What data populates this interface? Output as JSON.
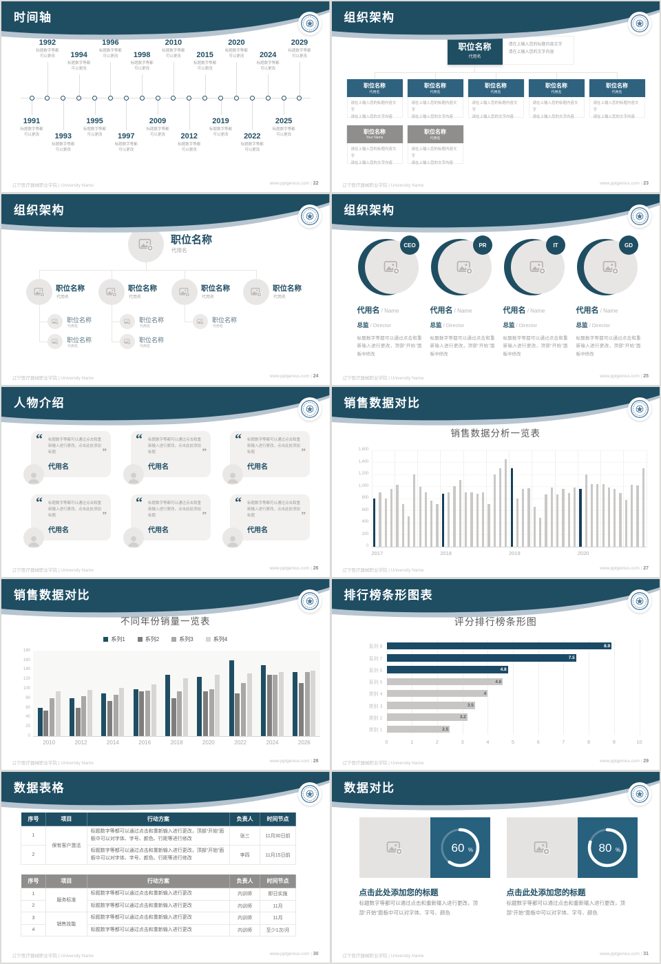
{
  "footer": {
    "university": "辽宁医疗器械职业学院 | University Name",
    "site": "www.pptgenius.com",
    "sep": "|"
  },
  "placeholder": {
    "note_line1": "请在上输入您的标题内容文字",
    "note_line2": "请在上输入您的文字内容"
  },
  "colors": {
    "header_band": "#1f4e63",
    "band_under": "#b7c5d0",
    "accent_blue": "#1f4e63",
    "chart_highlight": "#16405a",
    "chart_gray": "#c9c8c6",
    "series": [
      "#1f4e63",
      "#7f7e7d",
      "#a9a7a5",
      "#d8d6d4"
    ],
    "ranking_dark": "#1b4a66",
    "ranking_gray": "#c7c6c4",
    "table_header_blue": "#1f4e63",
    "table_header_gray": "#8f8e8d",
    "panel_blue": "#27617e",
    "placeholder_gray": "#e5e3e1",
    "icon_gray": "#b7b4b1"
  },
  "slides": {
    "timeline": {
      "title": "时间轴",
      "page": "22",
      "desc": "标题数字等都\n可以更改",
      "events": [
        {
          "year": "1991",
          "pos": "bottom-shallow"
        },
        {
          "year": "1992",
          "pos": "top-high"
        },
        {
          "year": "1993",
          "pos": "bottom-deep"
        },
        {
          "year": "1994",
          "pos": "top-low"
        },
        {
          "year": "1995",
          "pos": "bottom-shallow"
        },
        {
          "year": "1996",
          "pos": "top-high"
        },
        {
          "year": "1997",
          "pos": "bottom-deep"
        },
        {
          "year": "1998",
          "pos": "top-low"
        },
        {
          "year": "2009",
          "pos": "bottom-shallow"
        },
        {
          "year": "2010",
          "pos": "top-high"
        },
        {
          "year": "2012",
          "pos": "bottom-deep"
        },
        {
          "year": "2015",
          "pos": "top-low"
        },
        {
          "year": "2019",
          "pos": "bottom-shallow"
        },
        {
          "year": "2020",
          "pos": "top-high"
        },
        {
          "year": "2022",
          "pos": "bottom-deep"
        },
        {
          "year": "2024",
          "pos": "top-low"
        },
        {
          "year": "2025",
          "pos": "bottom-shallow"
        },
        {
          "year": "2029",
          "pos": "top-high"
        }
      ]
    },
    "org_boxes": {
      "title": "组织架构",
      "page": "23",
      "root": {
        "title": "职位名称",
        "sub": "代用名"
      },
      "children": [
        {
          "title": "职位名称",
          "sub": "代用名"
        },
        {
          "title": "职位名称",
          "sub": "代用名"
        },
        {
          "title": "职位名称",
          "sub": "代用名"
        },
        {
          "title": "职位名称",
          "sub": "代用名"
        },
        {
          "title": "职位名称",
          "sub": "代用名"
        }
      ],
      "extra": [
        {
          "title": "职位名称",
          "sub": "Your Name"
        },
        {
          "title": "职位名称",
          "sub": "代用名"
        }
      ]
    },
    "org_tree": {
      "title": "组织架构",
      "page": "24",
      "root": {
        "title": "职位名称",
        "sub": "代用名"
      },
      "branches": [
        {
          "title": "职位名称",
          "sub": "代用名",
          "children": [
            {
              "title": "职位名称",
              "sub": "代用名"
            },
            {
              "title": "职位名称",
              "sub": "代用名"
            }
          ]
        },
        {
          "title": "职位名称",
          "sub": "代用名",
          "children": [
            {
              "title": "职位名称",
              "sub": "代用名"
            },
            {
              "title": "职位名称",
              "sub": "代用名"
            }
          ]
        },
        {
          "title": "职位名称",
          "sub": "代用名",
          "children": [
            {
              "title": "职位名称",
              "sub": "代用名"
            }
          ]
        },
        {
          "title": "职位名称",
          "sub": "代用名",
          "children": []
        }
      ]
    },
    "org_people": {
      "title": "组织架构",
      "page": "25",
      "desc": "标题数字等都可以通过点击和重新输入进行更改，顶部“开始”面板中修改",
      "members": [
        {
          "badge": "CEO",
          "name": "代用名",
          "name_en": "Name",
          "role": "总监",
          "role_en": "Director"
        },
        {
          "badge": "PR",
          "name": "代用名",
          "name_en": "Name",
          "role": "总监",
          "role_en": "Director"
        },
        {
          "badge": "IT",
          "name": "代用名",
          "name_en": "Name",
          "role": "总监",
          "role_en": "Director"
        },
        {
          "badge": "GD",
          "name": "代用名",
          "name_en": "Name",
          "role": "总监",
          "role_en": "Director"
        }
      ]
    },
    "people_intro": {
      "title": "人物介绍",
      "page": "26",
      "quote_open": "“",
      "quote_close": "”",
      "cards": [
        {
          "quote": "标题数字等都可以通过点击和重新输入进行更改，点击此处添加标题",
          "name": "代用名"
        },
        {
          "quote": "标题数字等都可以通过点击和重新输入进行更改，点击此处添加标题",
          "name": "代用名"
        },
        {
          "quote": "标题数字等都可以通过点击和重新输入进行更改，点击此处添加标题",
          "name": "代用名"
        },
        {
          "quote": "标题数字等都可以通过点击和重新输入进行更改，点击此处添加标题",
          "name": "代用名"
        },
        {
          "quote": "标题数字等都可以通过点击和重新输入进行更改，点击此处添加标题",
          "name": "代用名"
        },
        {
          "quote": "标题数字等都可以通过点击和重新输入进行更改，点击此处添加标题",
          "name": "代用名"
        }
      ]
    },
    "sales1": {
      "title": "销售数据对比",
      "page": "27"
    },
    "sales2": {
      "title": "销售数据对比",
      "page": "28"
    },
    "ranking": {
      "title": "排行榜条形图表",
      "page": "29"
    },
    "tables": {
      "title": "数据表格",
      "page": "30",
      "headers": [
        "序号",
        "项目",
        "行动方案",
        "负责人",
        "时间节点"
      ],
      "table1": {
        "rows": [
          {
            "no": "1",
            "item": "保有客户激活",
            "item_span": 2,
            "action": "标题数字等都可以通过点击和重新输入进行更改，顶部“开始”面板中可以对字体、字号、颜色、行距等进行修改",
            "owner": "张三",
            "time": "11月30日前"
          },
          {
            "no": "2",
            "action": "标题数字等都可以通过点击和重新输入进行更改，顶部“开始”面板中可以对字体、字号、颜色、行距等进行修改",
            "owner": "李四",
            "time": "11月15日前"
          }
        ]
      },
      "table2": {
        "rows": [
          {
            "no": "1",
            "item": "服务标准",
            "item_span": 2,
            "action": "标题数字等都可以通过点击和重新输入进行更改",
            "owner": "内训师",
            "time": "即日实施"
          },
          {
            "no": "2",
            "action": "标题数字等都可以通过点击和重新输入进行更改",
            "owner": "内训师",
            "time": "11月"
          },
          {
            "no": "3",
            "item": "销售技能",
            "item_span": 2,
            "action": "标题数字等都可以通过点击和重新输入进行更改",
            "owner": "内训师",
            "time": "11月"
          },
          {
            "no": "4",
            "action": "标题数字等都可以通过点击和重新输入进行更改",
            "owner": "内训师",
            "time": "至少1次/月"
          }
        ]
      }
    },
    "compare": {
      "title": "数据对比",
      "page": "31",
      "cards": [
        {
          "percent": 60,
          "unit": "%",
          "heading": "点击此处添加您的标题",
          "body": "标题数字等都可以通过点击和重新输入进行更改，顶部“开始”面板中可以对字体、字号、颜色"
        },
        {
          "percent": 80,
          "unit": "%",
          "heading": "点击此处添加您的标题",
          "body": "标题数字等都可以通过点击和重新输入进行更改，顶部“开始”面板中可以对字体、字号、颜色"
        }
      ]
    }
  },
  "chart_data": [
    {
      "id": "sales-analysis",
      "type": "bar",
      "title": "销售数据分析一览表",
      "x_groups": [
        "2017",
        "2018",
        "2019",
        "2020"
      ],
      "values": [
        800,
        900,
        800,
        950,
        1020,
        700,
        500,
        1200,
        990,
        900,
        760,
        700,
        880,
        900,
        1000,
        1100,
        900,
        900,
        880,
        900,
        700,
        1200,
        1300,
        1450,
        1300,
        800,
        960,
        970,
        660,
        480,
        860,
        980,
        860,
        960,
        890,
        980,
        950,
        1200,
        1030,
        1040,
        1030,
        980,
        960,
        890,
        770,
        1020,
        1010,
        1300
      ],
      "highlight_indices": [
        0,
        12,
        24,
        36
      ],
      "ylim": [
        0,
        1600
      ],
      "ytick_step": 200,
      "bar_color": "#c9c8c6",
      "highlight_color": "#16405a",
      "grid": true,
      "legend": false
    },
    {
      "id": "yearly-sales",
      "type": "bar",
      "title": "不同年份销量一览表",
      "categories": [
        "2010",
        "2012",
        "2014",
        "2016",
        "2018",
        "2020",
        "2022",
        "2024",
        "2026"
      ],
      "series": [
        {
          "name": "系列1",
          "color": "#1f4e63",
          "values": [
            60,
            80,
            90,
            100,
            130,
            125,
            160,
            150,
            135
          ]
        },
        {
          "name": "系列2",
          "color": "#7f7e7d",
          "values": [
            55,
            60,
            75,
            95,
            80,
            95,
            90,
            130,
            112
          ]
        },
        {
          "name": "系列3",
          "color": "#a9a7a5",
          "values": [
            80,
            85,
            88,
            96,
            95,
            100,
            112,
            130,
            135
          ]
        },
        {
          "name": "系列4",
          "color": "#d8d6d4",
          "values": [
            95,
            98,
            102,
            110,
            123,
            130,
            133,
            135,
            138
          ]
        }
      ],
      "ylim": [
        0,
        180
      ],
      "ytick_step": 20,
      "legend_position": "top"
    },
    {
      "id": "score-ranking",
      "type": "bar-horizontal",
      "title": "评分排行榜条形图",
      "categories": [
        "系列 8",
        "系列 7",
        "系列 6",
        "系列 5",
        "类别 4",
        "类别 3",
        "类别 2",
        "类别 1"
      ],
      "values": [
        8.9,
        7.5,
        4.8,
        4.6,
        4,
        3.5,
        3.2,
        2.5
      ],
      "xlim": [
        0,
        10
      ],
      "xtick_step": 1,
      "bar_colors": [
        "#1b4a66",
        "#1b4a66",
        "#1b4a66",
        "#c7c6c4",
        "#c7c6c4",
        "#c7c6c4",
        "#c7c6c4",
        "#c7c6c4"
      ],
      "grid": true
    },
    {
      "id": "compare-donuts",
      "type": "pie",
      "values": [
        60,
        80
      ],
      "unit": "%"
    }
  ]
}
